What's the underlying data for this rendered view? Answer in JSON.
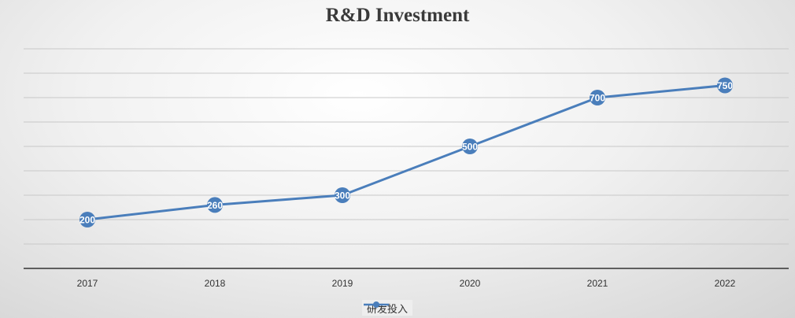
{
  "chart_data": {
    "type": "line",
    "title": "R&D Investment",
    "xlabel": "",
    "ylabel": "",
    "categories": [
      "2017",
      "2018",
      "2019",
      "2020",
      "2021",
      "2022"
    ],
    "series": [
      {
        "name": "研发投入",
        "values": [
          200,
          260,
          300,
          500,
          700,
          750
        ],
        "color": "#4a7ebb"
      }
    ],
    "ylim": [
      0,
      900
    ],
    "grid": true,
    "legend": "bottom",
    "data_labels": true
  }
}
